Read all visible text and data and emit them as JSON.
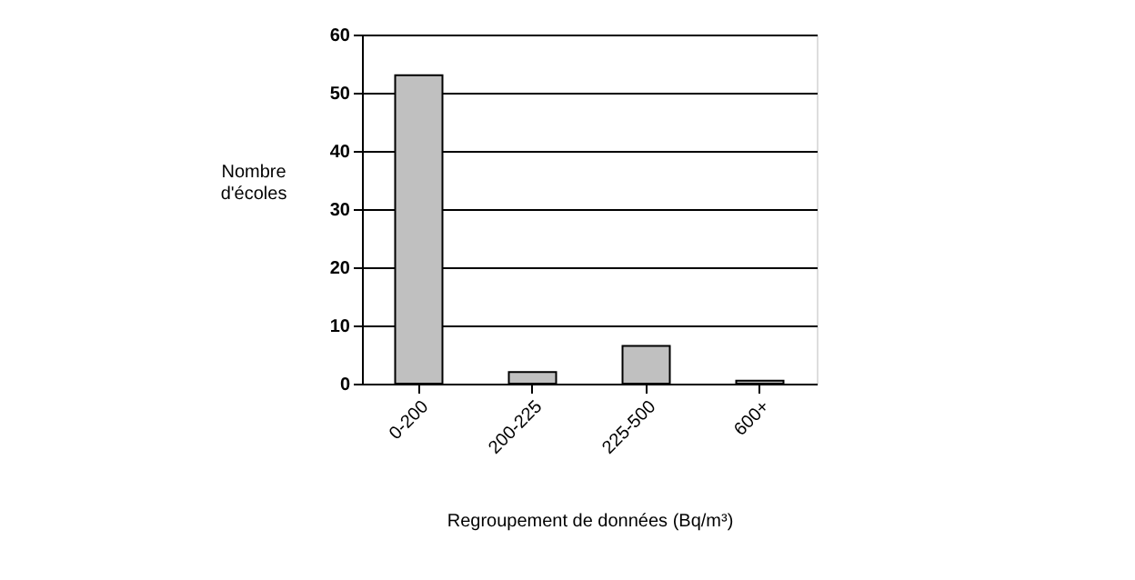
{
  "chart_data": {
    "type": "bar",
    "categories": [
      "0-200",
      "200-225",
      "225-500",
      "600+"
    ],
    "values": [
      53,
      2,
      6.5,
      0.5
    ],
    "color": "#c0c0c0",
    "ylabel": "Nombre d'écoles",
    "xlabel": "Regroupement de données (Bq/m³)",
    "ylim": [
      0,
      60
    ],
    "yticks": [
      0,
      10,
      20,
      30,
      40,
      50,
      60
    ],
    "grid": "y"
  }
}
